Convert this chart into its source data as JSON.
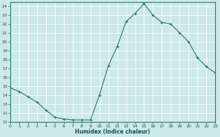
{
  "x": [
    0,
    1,
    2,
    3,
    4,
    5,
    6,
    7,
    8,
    9,
    10,
    11,
    12,
    13,
    14,
    15,
    16,
    17,
    18,
    19,
    20,
    21,
    22,
    23
  ],
  "y": [
    14.8,
    14.4,
    13.8,
    13.2,
    12.3,
    11.5,
    11.3,
    11.2,
    11.2,
    11.2,
    14.0,
    17.3,
    19.5,
    22.3,
    23.2,
    24.3,
    23.0,
    22.2,
    22.0,
    21.0,
    20.0,
    18.2,
    17.2,
    16.5
  ],
  "xlabel": "Humidex (Indice chaleur)",
  "ylim": [
    11,
    24.5
  ],
  "xlim": [
    0,
    23
  ],
  "yticks": [
    11,
    12,
    13,
    14,
    15,
    16,
    17,
    18,
    19,
    20,
    21,
    22,
    23,
    24
  ],
  "xticks": [
    0,
    1,
    2,
    3,
    4,
    5,
    6,
    7,
    8,
    9,
    10,
    11,
    12,
    13,
    14,
    15,
    16,
    17,
    18,
    19,
    20,
    21,
    22,
    23
  ],
  "line_color": "#1a7a6a",
  "marker_color": "#1a7a6a",
  "bg_color": "#cce8e8",
  "grid_color": "#b0d8d8",
  "axis_label_color": "#1a5050",
  "tick_label_color": "#1a5050",
  "spine_color": "#1a7a6a"
}
